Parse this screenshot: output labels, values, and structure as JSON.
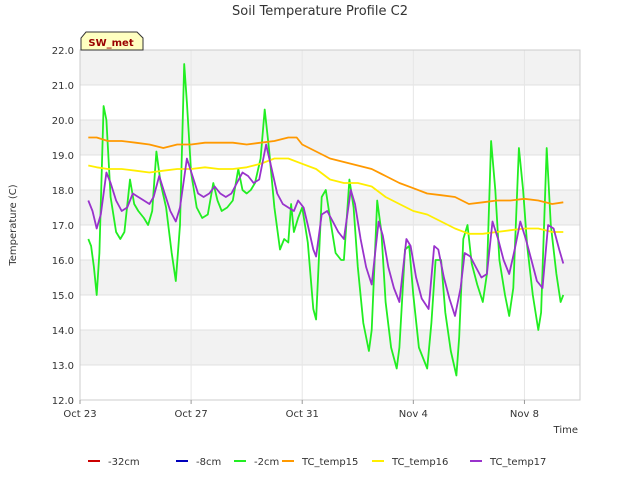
{
  "chart_data": {
    "type": "line",
    "title": "Soil Temperature Profile C2",
    "xlabel": "Time",
    "ylabel": "Temperature (C)",
    "ylim": [
      12.0,
      22.0
    ],
    "xlim_days": [
      0,
      18
    ],
    "x_ticks": [
      {
        "label": "Oct 23",
        "day": 0
      },
      {
        "label": "Oct 27",
        "day": 4
      },
      {
        "label": "Oct 31",
        "day": 8
      },
      {
        "label": "Nov 4",
        "day": 12
      },
      {
        "label": "Nov 8",
        "day": 16
      }
    ],
    "y_ticks": [
      "12.0",
      "13.0",
      "14.0",
      "15.0",
      "16.0",
      "17.0",
      "18.0",
      "19.0",
      "20.0",
      "21.0",
      "22.0"
    ],
    "grid": true,
    "site_label": "SW_met",
    "legend": {
      "placement": "bottom",
      "items": [
        {
          "name": "-32cm",
          "color": "#cc0000"
        },
        {
          "name": "-8cm",
          "color": "#0000bb"
        },
        {
          "name": "-2cm",
          "color": "#22ee22"
        },
        {
          "name": "TC_temp15",
          "color": "#ff9900"
        },
        {
          "name": "TC_temp16",
          "color": "#ffee00"
        },
        {
          "name": "TC_temp17",
          "color": "#9933cc"
        }
      ]
    },
    "series": [
      {
        "name": "-2cm",
        "color": "#22ee22",
        "points": [
          [
            0.3,
            16.6
          ],
          [
            0.4,
            16.4
          ],
          [
            0.5,
            15.8
          ],
          [
            0.6,
            15.0
          ],
          [
            0.7,
            16.2
          ],
          [
            0.85,
            20.4
          ],
          [
            0.95,
            20.0
          ],
          [
            1.1,
            17.8
          ],
          [
            1.3,
            16.8
          ],
          [
            1.45,
            16.6
          ],
          [
            1.6,
            16.8
          ],
          [
            1.8,
            18.3
          ],
          [
            1.95,
            17.6
          ],
          [
            2.1,
            17.4
          ],
          [
            2.3,
            17.2
          ],
          [
            2.45,
            17.0
          ],
          [
            2.6,
            17.4
          ],
          [
            2.75,
            19.1
          ],
          [
            2.9,
            18.2
          ],
          [
            3.1,
            17.5
          ],
          [
            3.3,
            16.2
          ],
          [
            3.45,
            15.4
          ],
          [
            3.6,
            17.0
          ],
          [
            3.75,
            21.6
          ],
          [
            3.85,
            20.5
          ],
          [
            4.0,
            18.5
          ],
          [
            4.2,
            17.5
          ],
          [
            4.4,
            17.2
          ],
          [
            4.6,
            17.3
          ],
          [
            4.8,
            18.2
          ],
          [
            4.95,
            17.7
          ],
          [
            5.1,
            17.4
          ],
          [
            5.3,
            17.5
          ],
          [
            5.5,
            17.7
          ],
          [
            5.7,
            18.6
          ],
          [
            5.85,
            18.0
          ],
          [
            6.0,
            17.9
          ],
          [
            6.15,
            18.0
          ],
          [
            6.3,
            18.2
          ],
          [
            6.5,
            18.9
          ],
          [
            6.65,
            20.3
          ],
          [
            6.8,
            19.2
          ],
          [
            7.0,
            17.5
          ],
          [
            7.2,
            16.3
          ],
          [
            7.35,
            16.6
          ],
          [
            7.5,
            16.5
          ],
          [
            7.6,
            17.6
          ],
          [
            7.7,
            16.8
          ],
          [
            7.85,
            17.2
          ],
          [
            8.0,
            17.5
          ],
          [
            8.2,
            16.5
          ],
          [
            8.4,
            14.6
          ],
          [
            8.5,
            14.3
          ],
          [
            8.7,
            17.8
          ],
          [
            8.85,
            18.0
          ],
          [
            9.0,
            17.2
          ],
          [
            9.2,
            16.2
          ],
          [
            9.4,
            16.0
          ],
          [
            9.5,
            16.0
          ],
          [
            9.7,
            18.3
          ],
          [
            9.85,
            17.5
          ],
          [
            10.0,
            15.8
          ],
          [
            10.2,
            14.2
          ],
          [
            10.4,
            13.4
          ],
          [
            10.5,
            14.0
          ],
          [
            10.7,
            17.7
          ],
          [
            10.85,
            16.8
          ],
          [
            11.0,
            14.8
          ],
          [
            11.2,
            13.5
          ],
          [
            11.4,
            12.9
          ],
          [
            11.5,
            13.5
          ],
          [
            11.7,
            16.3
          ],
          [
            11.85,
            16.4
          ],
          [
            12.0,
            15.0
          ],
          [
            12.2,
            13.5
          ],
          [
            12.5,
            12.9
          ],
          [
            12.65,
            14.2
          ],
          [
            12.8,
            16.0
          ],
          [
            13.0,
            16.0
          ],
          [
            13.15,
            14.5
          ],
          [
            13.35,
            13.4
          ],
          [
            13.55,
            12.7
          ],
          [
            13.65,
            13.8
          ],
          [
            13.8,
            16.6
          ],
          [
            13.95,
            17.0
          ],
          [
            14.1,
            15.9
          ],
          [
            14.3,
            15.3
          ],
          [
            14.5,
            14.8
          ],
          [
            14.65,
            15.6
          ],
          [
            14.8,
            19.4
          ],
          [
            14.95,
            18.0
          ],
          [
            15.1,
            16.0
          ],
          [
            15.3,
            15.0
          ],
          [
            15.45,
            14.4
          ],
          [
            15.6,
            15.2
          ],
          [
            15.8,
            19.2
          ],
          [
            15.95,
            18.0
          ],
          [
            16.1,
            16.4
          ],
          [
            16.3,
            15.0
          ],
          [
            16.5,
            14.0
          ],
          [
            16.6,
            14.5
          ],
          [
            16.8,
            19.2
          ],
          [
            16.95,
            17.0
          ],
          [
            17.15,
            15.6
          ],
          [
            17.3,
            14.8
          ],
          [
            17.4,
            15.0
          ]
        ]
      },
      {
        "name": "TC_temp15",
        "color": "#ff9900",
        "points": [
          [
            0.3,
            19.5
          ],
          [
            0.6,
            19.5
          ],
          [
            1.0,
            19.4
          ],
          [
            1.5,
            19.4
          ],
          [
            2.0,
            19.35
          ],
          [
            2.5,
            19.3
          ],
          [
            3.0,
            19.2
          ],
          [
            3.5,
            19.3
          ],
          [
            4.0,
            19.3
          ],
          [
            4.5,
            19.35
          ],
          [
            5.0,
            19.35
          ],
          [
            5.5,
            19.35
          ],
          [
            6.0,
            19.3
          ],
          [
            6.5,
            19.35
          ],
          [
            7.0,
            19.4
          ],
          [
            7.5,
            19.5
          ],
          [
            7.8,
            19.5
          ],
          [
            8.0,
            19.3
          ],
          [
            8.5,
            19.1
          ],
          [
            9.0,
            18.9
          ],
          [
            9.5,
            18.8
          ],
          [
            10.0,
            18.7
          ],
          [
            10.5,
            18.6
          ],
          [
            11.0,
            18.4
          ],
          [
            11.5,
            18.2
          ],
          [
            12.0,
            18.05
          ],
          [
            12.5,
            17.9
          ],
          [
            13.0,
            17.85
          ],
          [
            13.5,
            17.8
          ],
          [
            14.0,
            17.6
          ],
          [
            14.5,
            17.65
          ],
          [
            15.0,
            17.7
          ],
          [
            15.5,
            17.7
          ],
          [
            16.0,
            17.75
          ],
          [
            16.5,
            17.7
          ],
          [
            17.0,
            17.6
          ],
          [
            17.4,
            17.65
          ]
        ]
      },
      {
        "name": "TC_temp16",
        "color": "#ffee00",
        "points": [
          [
            0.3,
            18.7
          ],
          [
            0.6,
            18.65
          ],
          [
            1.0,
            18.6
          ],
          [
            1.5,
            18.6
          ],
          [
            2.0,
            18.55
          ],
          [
            2.5,
            18.5
          ],
          [
            3.0,
            18.55
          ],
          [
            3.5,
            18.6
          ],
          [
            4.0,
            18.6
          ],
          [
            4.5,
            18.65
          ],
          [
            5.0,
            18.6
          ],
          [
            5.5,
            18.6
          ],
          [
            6.0,
            18.65
          ],
          [
            6.5,
            18.75
          ],
          [
            7.0,
            18.9
          ],
          [
            7.5,
            18.9
          ],
          [
            8.0,
            18.75
          ],
          [
            8.5,
            18.6
          ],
          [
            9.0,
            18.3
          ],
          [
            9.5,
            18.2
          ],
          [
            10.0,
            18.2
          ],
          [
            10.5,
            18.1
          ],
          [
            11.0,
            17.8
          ],
          [
            11.5,
            17.6
          ],
          [
            12.0,
            17.4
          ],
          [
            12.5,
            17.3
          ],
          [
            13.0,
            17.1
          ],
          [
            13.5,
            16.9
          ],
          [
            14.0,
            16.75
          ],
          [
            14.5,
            16.75
          ],
          [
            15.0,
            16.8
          ],
          [
            15.5,
            16.85
          ],
          [
            16.0,
            16.9
          ],
          [
            16.5,
            16.9
          ],
          [
            17.0,
            16.8
          ],
          [
            17.4,
            16.8
          ]
        ]
      },
      {
        "name": "TC_temp17",
        "color": "#9933cc",
        "points": [
          [
            0.3,
            17.7
          ],
          [
            0.45,
            17.4
          ],
          [
            0.6,
            16.9
          ],
          [
            0.75,
            17.3
          ],
          [
            0.95,
            18.5
          ],
          [
            1.1,
            18.2
          ],
          [
            1.3,
            17.7
          ],
          [
            1.5,
            17.4
          ],
          [
            1.7,
            17.5
          ],
          [
            1.9,
            17.9
          ],
          [
            2.1,
            17.8
          ],
          [
            2.3,
            17.7
          ],
          [
            2.5,
            17.6
          ],
          [
            2.65,
            17.8
          ],
          [
            2.85,
            18.4
          ],
          [
            3.05,
            17.9
          ],
          [
            3.25,
            17.4
          ],
          [
            3.45,
            17.1
          ],
          [
            3.6,
            17.5
          ],
          [
            3.85,
            18.9
          ],
          [
            4.05,
            18.4
          ],
          [
            4.25,
            17.9
          ],
          [
            4.45,
            17.8
          ],
          [
            4.65,
            17.9
          ],
          [
            4.85,
            18.1
          ],
          [
            5.05,
            17.9
          ],
          [
            5.25,
            17.8
          ],
          [
            5.45,
            17.9
          ],
          [
            5.65,
            18.2
          ],
          [
            5.85,
            18.5
          ],
          [
            6.05,
            18.4
          ],
          [
            6.25,
            18.2
          ],
          [
            6.45,
            18.3
          ],
          [
            6.7,
            19.3
          ],
          [
            6.9,
            18.6
          ],
          [
            7.1,
            17.9
          ],
          [
            7.3,
            17.6
          ],
          [
            7.5,
            17.5
          ],
          [
            7.7,
            17.4
          ],
          [
            7.85,
            17.7
          ],
          [
            8.05,
            17.5
          ],
          [
            8.2,
            17.0
          ],
          [
            8.4,
            16.3
          ],
          [
            8.5,
            16.1
          ],
          [
            8.7,
            17.3
          ],
          [
            8.9,
            17.4
          ],
          [
            9.1,
            17.1
          ],
          [
            9.3,
            16.8
          ],
          [
            9.5,
            16.6
          ],
          [
            9.75,
            18.0
          ],
          [
            9.9,
            17.6
          ],
          [
            10.1,
            16.6
          ],
          [
            10.3,
            15.8
          ],
          [
            10.5,
            15.3
          ],
          [
            10.75,
            17.1
          ],
          [
            10.9,
            16.7
          ],
          [
            11.1,
            15.8
          ],
          [
            11.3,
            15.2
          ],
          [
            11.5,
            14.8
          ],
          [
            11.75,
            16.6
          ],
          [
            11.9,
            16.4
          ],
          [
            12.1,
            15.5
          ],
          [
            12.3,
            14.9
          ],
          [
            12.55,
            14.6
          ],
          [
            12.75,
            16.4
          ],
          [
            12.9,
            16.3
          ],
          [
            13.1,
            15.5
          ],
          [
            13.3,
            14.9
          ],
          [
            13.5,
            14.4
          ],
          [
            13.7,
            15.2
          ],
          [
            13.85,
            16.2
          ],
          [
            14.05,
            16.1
          ],
          [
            14.25,
            15.8
          ],
          [
            14.45,
            15.5
          ],
          [
            14.65,
            15.6
          ],
          [
            14.85,
            17.1
          ],
          [
            15.05,
            16.6
          ],
          [
            15.25,
            16.0
          ],
          [
            15.45,
            15.6
          ],
          [
            15.65,
            16.3
          ],
          [
            15.85,
            17.1
          ],
          [
            16.05,
            16.6
          ],
          [
            16.25,
            16.0
          ],
          [
            16.45,
            15.4
          ],
          [
            16.65,
            15.2
          ],
          [
            16.85,
            17.0
          ],
          [
            17.05,
            16.9
          ],
          [
            17.25,
            16.3
          ],
          [
            17.4,
            15.9
          ]
        ]
      }
    ]
  }
}
